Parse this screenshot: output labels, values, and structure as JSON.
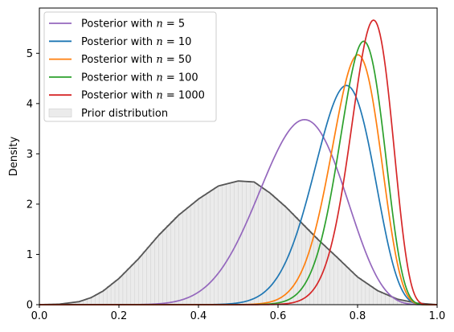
{
  "chart_data": {
    "type": "line",
    "title": "",
    "xlabel": "",
    "ylabel": "Density",
    "xlim": [
      0,
      1
    ],
    "ylim": [
      0,
      5.9
    ],
    "xticks": [
      "0.0",
      "0.2",
      "0.4",
      "0.6",
      "0.8",
      "1.0"
    ],
    "yticks": [
      "0",
      "1",
      "2",
      "3",
      "4",
      "5"
    ],
    "grid": false,
    "legend_position": "top-left",
    "series": [
      {
        "name": "Posterior with n = 5",
        "legend_prefix": "Posterior with ",
        "legend_var": "n",
        "legend_suffix": " = 5",
        "color": "#9467bd",
        "shape": {
          "a": 13.4,
          "b": 7.2
        },
        "peak": {
          "x": 0.68,
          "y": 3.68
        }
      },
      {
        "name": "Posterior with n = 10",
        "legend_prefix": "Posterior with ",
        "legend_var": "n",
        "legend_suffix": " = 10",
        "color": "#1f77b4",
        "shape": {
          "a": 24.7,
          "b": 8.0
        },
        "peak": {
          "x": 0.77,
          "y": 4.36
        }
      },
      {
        "name": "Posterior with n = 50",
        "legend_prefix": "Posterior with ",
        "legend_var": "n",
        "legend_suffix": " = 50",
        "color": "#ff7f0e",
        "shape": {
          "a": 34.0,
          "b": 9.2
        },
        "peak": {
          "x": 0.8,
          "y": 4.97
        }
      },
      {
        "name": "Posterior with n = 100",
        "legend_prefix": "Posterior with ",
        "legend_var": "n",
        "legend_suffix": " = 100",
        "color": "#2ca02c",
        "shape": {
          "a": 39.0,
          "b": 9.6
        },
        "peak": {
          "x": 0.815,
          "y": 5.24
        }
      },
      {
        "name": "Posterior with n = 1000",
        "legend_prefix": "Posterior with ",
        "legend_var": "n",
        "legend_suffix": " = 1000",
        "color": "#d62728",
        "shape": {
          "a": 42.0,
          "b": 8.8
        },
        "peak": {
          "x": 0.84,
          "y": 5.66
        }
      }
    ],
    "prior": {
      "name": "Prior distribution",
      "kde_color": "#555555",
      "hist_color": "#ebebeb",
      "hist_edge": "#cccccc",
      "x": [
        0.0,
        0.05,
        0.1,
        0.13,
        0.16,
        0.2,
        0.25,
        0.3,
        0.35,
        0.4,
        0.45,
        0.5,
        0.54,
        0.58,
        0.62,
        0.66,
        0.7,
        0.75,
        0.8,
        0.85,
        0.9,
        0.95,
        1.0
      ],
      "density": [
        0.0,
        0.01,
        0.06,
        0.14,
        0.27,
        0.52,
        0.92,
        1.38,
        1.78,
        2.1,
        2.36,
        2.46,
        2.44,
        2.22,
        1.94,
        1.62,
        1.3,
        0.93,
        0.55,
        0.28,
        0.11,
        0.03,
        0.0
      ]
    }
  }
}
